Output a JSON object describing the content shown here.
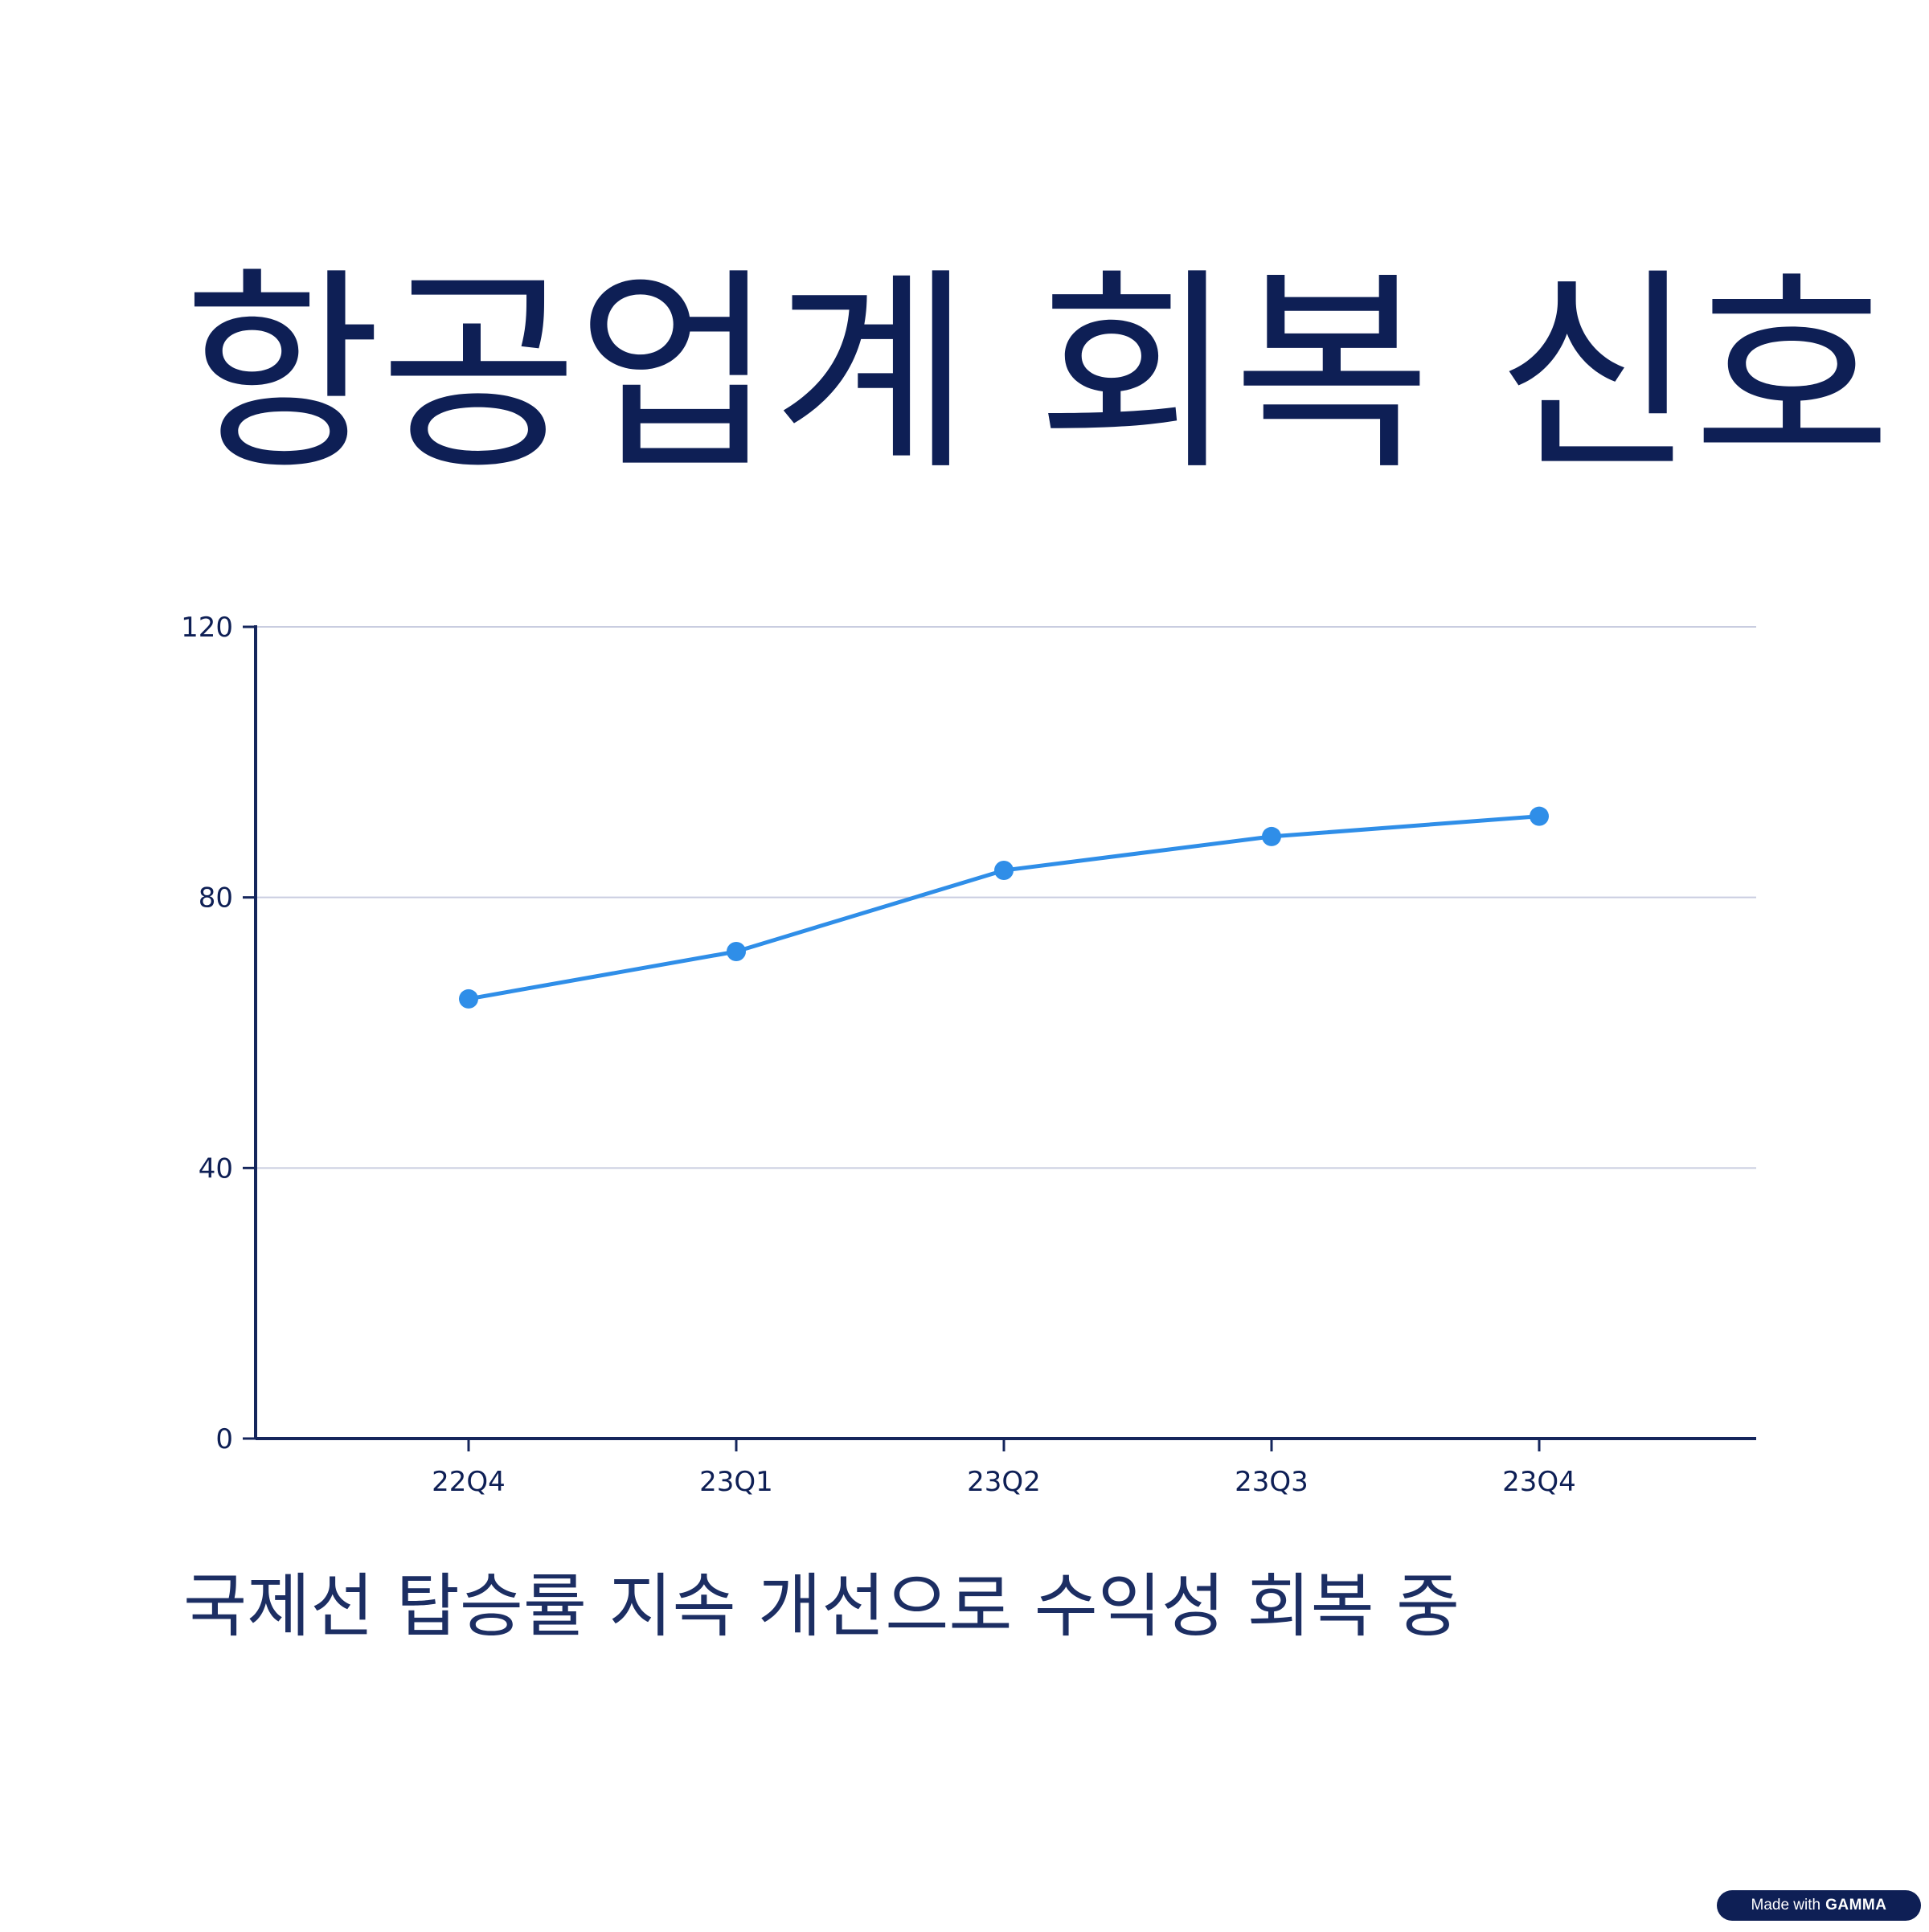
{
  "title": "항공업계 회복 신호",
  "caption": "국제선 탑승률 지속 개선으로 수익성 회복 중",
  "badge": {
    "prefix": "Made with",
    "brand": "GAMMA"
  },
  "colors": {
    "text": "#0e1f55",
    "axis": "#15265c",
    "grid": "#c9cde0",
    "series": "#2f8ee8"
  },
  "chart_data": {
    "type": "line",
    "categories": [
      "22Q4",
      "23Q1",
      "23Q2",
      "23Q3",
      "23Q4"
    ],
    "series": [
      {
        "values": [
          65,
          72,
          84,
          89,
          92
        ]
      }
    ],
    "ylim": [
      0,
      120
    ],
    "yticks": [
      0,
      40,
      80,
      120
    ],
    "grid": true,
    "xlabel": "",
    "ylabel": ""
  }
}
